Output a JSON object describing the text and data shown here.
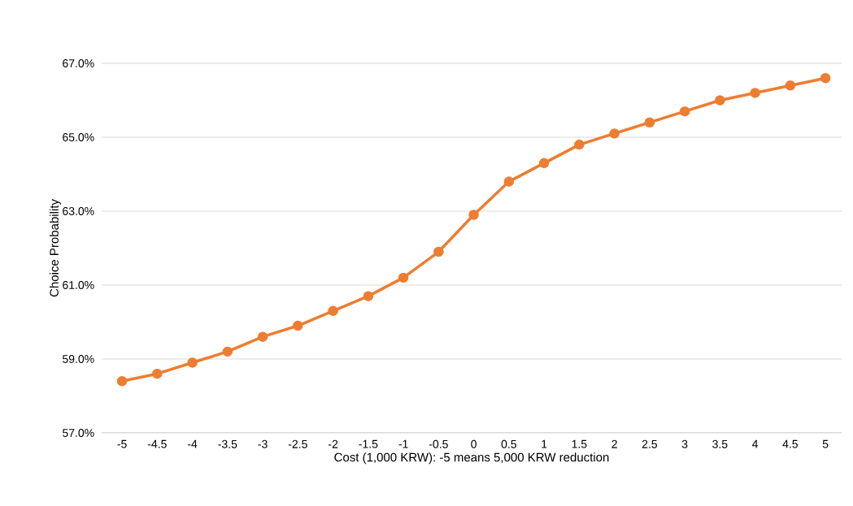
{
  "chart_data": {
    "type": "line",
    "xlabel": "Cost (1,000 KRW): -5 means 5,000 KRW reduction",
    "ylabel": "Choice Probability",
    "categories": [
      "-5",
      "-4.5",
      "-4",
      "-3.5",
      "-3",
      "-2.5",
      "-2",
      "-1.5",
      "-1",
      "-0.5",
      "0",
      "0.5",
      "1",
      "1.5",
      "2",
      "2.5",
      "3",
      "3.5",
      "4",
      "4.5",
      "5"
    ],
    "series": [
      {
        "color": "#ed7d31",
        "values": [
          58.4,
          58.6,
          58.9,
          59.2,
          59.6,
          59.9,
          60.3,
          60.7,
          61.2,
          61.9,
          62.9,
          63.8,
          64.3,
          64.8,
          65.1,
          65.4,
          65.7,
          66.0,
          66.2,
          66.4,
          66.6
        ]
      }
    ],
    "ylim": [
      57,
      67
    ],
    "yticks": [
      {
        "value": 57,
        "label": "57.0%"
      },
      {
        "value": 59,
        "label": "59.0%"
      },
      {
        "value": 61,
        "label": "61.0%"
      },
      {
        "value": 63,
        "label": "63.0%"
      },
      {
        "value": 65,
        "label": "65.0%"
      },
      {
        "value": 67,
        "label": "67.0%"
      }
    ],
    "grid": "y",
    "marker": "circle",
    "line_style": "solid"
  }
}
